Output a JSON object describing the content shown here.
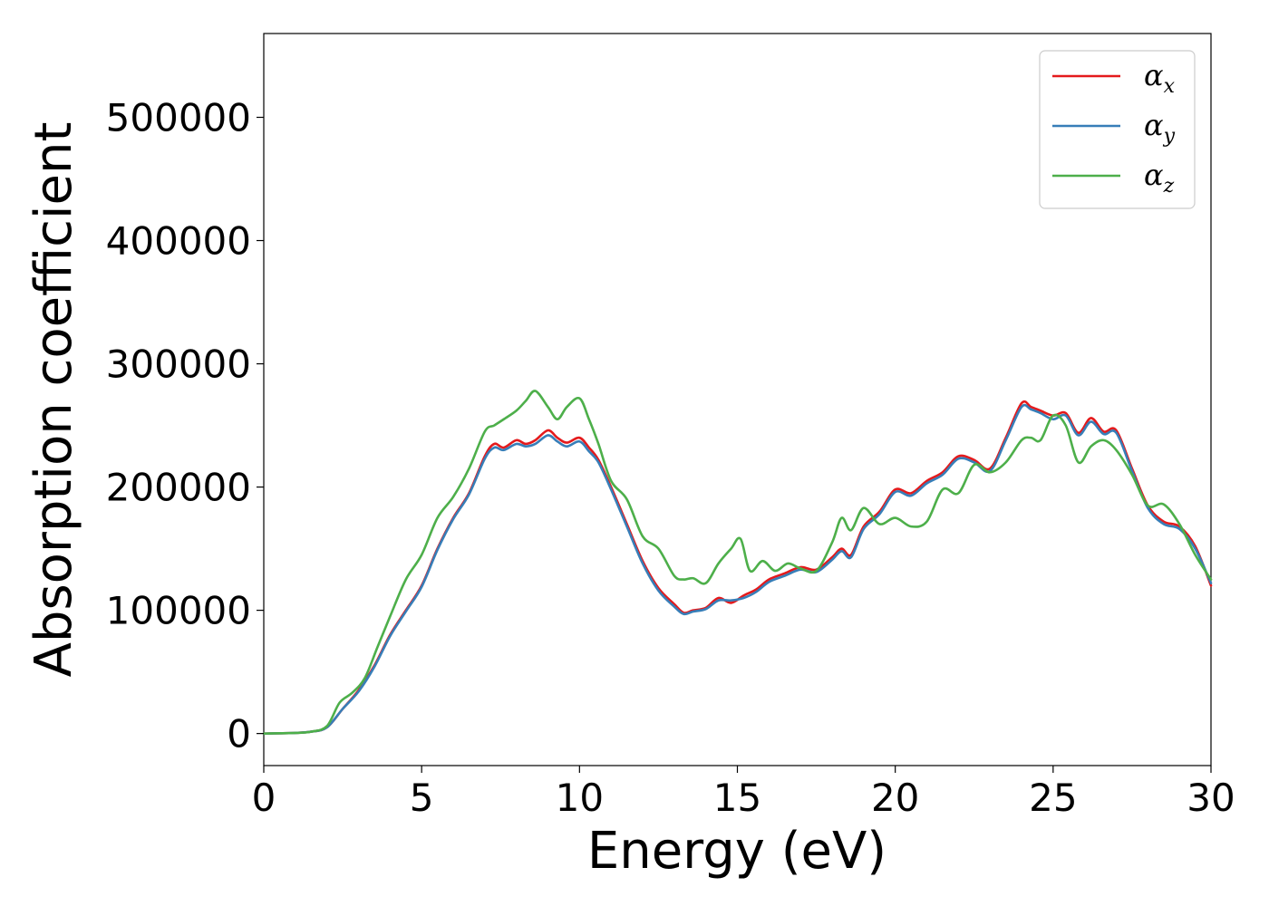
{
  "chart_data": {
    "type": "line",
    "xlabel": "Energy (eV)",
    "ylabel": "Absorption coefficient",
    "xlim": [
      0,
      30
    ],
    "ylim": [
      -26000,
      568000
    ],
    "xticks": [
      0,
      5,
      10,
      15,
      20,
      25,
      30
    ],
    "xtick_labels": [
      "0",
      "5",
      "10",
      "15",
      "20",
      "25",
      "30"
    ],
    "yticks": [
      0,
      100000,
      200000,
      300000,
      400000,
      500000
    ],
    "ytick_labels": [
      "0",
      "100000",
      "200000",
      "300000",
      "400000",
      "500000"
    ],
    "grid": false,
    "legend_position": "top-right",
    "series": [
      {
        "name": "α_x",
        "label_main": "α",
        "label_sub": "x",
        "color": "#e41a1c",
        "x": [
          0,
          1,
          1.5,
          2,
          2.5,
          3,
          3.5,
          4,
          4.5,
          5,
          5.5,
          6,
          6.5,
          7,
          7.3,
          7.6,
          8,
          8.3,
          8.6,
          9,
          9.3,
          9.6,
          10,
          10.3,
          10.6,
          11,
          11.5,
          12,
          12.5,
          13,
          13.3,
          13.6,
          14,
          14.4,
          14.8,
          15.2,
          15.6,
          16,
          16.5,
          17,
          17.5,
          18,
          18.3,
          18.6,
          19,
          19.5,
          20,
          20.5,
          21,
          21.5,
          22,
          22.5,
          23,
          23.5,
          24,
          24.3,
          24.6,
          25,
          25.4,
          25.8,
          26.2,
          26.6,
          27,
          27.5,
          28,
          28.5,
          29,
          29.5,
          30
        ],
        "y": [
          0,
          500,
          1500,
          5000,
          20000,
          35000,
          55000,
          80000,
          100000,
          120000,
          150000,
          175000,
          195000,
          225000,
          235000,
          232000,
          238000,
          235000,
          238000,
          246000,
          240000,
          236000,
          240000,
          232000,
          222000,
          200000,
          170000,
          140000,
          118000,
          105000,
          98000,
          100000,
          102000,
          110000,
          106000,
          112000,
          117000,
          125000,
          130000,
          135000,
          133000,
          143000,
          150000,
          145000,
          168000,
          180000,
          198000,
          195000,
          205000,
          212000,
          225000,
          222000,
          215000,
          240000,
          268000,
          265000,
          262000,
          258000,
          260000,
          244000,
          256000,
          245000,
          246000,
          215000,
          185000,
          172000,
          168000,
          152000,
          120000
        ]
      },
      {
        "name": "α_y",
        "label_main": "α",
        "label_sub": "y",
        "color": "#377eb8",
        "x": [
          0,
          1,
          1.5,
          2,
          2.5,
          3,
          3.5,
          4,
          4.5,
          5,
          5.5,
          6,
          6.5,
          7,
          7.3,
          7.6,
          8,
          8.3,
          8.6,
          9,
          9.3,
          9.6,
          10,
          10.3,
          10.6,
          11,
          11.5,
          12,
          12.5,
          13,
          13.3,
          13.6,
          14,
          14.4,
          14.8,
          15.2,
          15.6,
          16,
          16.5,
          17,
          17.5,
          18,
          18.3,
          18.6,
          19,
          19.5,
          20,
          20.5,
          21,
          21.5,
          22,
          22.5,
          23,
          23.5,
          24,
          24.3,
          24.6,
          25,
          25.4,
          25.8,
          26.2,
          26.6,
          27,
          27.5,
          28,
          28.5,
          29,
          29.5,
          30
        ],
        "y": [
          0,
          500,
          1500,
          5000,
          20000,
          34000,
          54000,
          79000,
          99000,
          119000,
          149000,
          174000,
          194000,
          223000,
          232000,
          230000,
          235000,
          233000,
          235000,
          242000,
          237000,
          233000,
          237000,
          229000,
          220000,
          198000,
          168000,
          138000,
          116000,
          103000,
          97000,
          99000,
          101000,
          108000,
          108000,
          110000,
          115000,
          123000,
          128000,
          133000,
          131000,
          141000,
          148000,
          143000,
          166000,
          178000,
          196000,
          193000,
          203000,
          210000,
          223000,
          220000,
          213000,
          238000,
          265000,
          263000,
          260000,
          255000,
          258000,
          242000,
          253000,
          243000,
          244000,
          213000,
          183000,
          170000,
          166000,
          150000,
          122000
        ]
      },
      {
        "name": "α_z",
        "label_main": "α",
        "label_sub": "z",
        "color": "#4daf4a",
        "x": [
          0,
          1,
          1.5,
          2,
          2.4,
          2.8,
          3.2,
          3.6,
          4,
          4.5,
          5,
          5.5,
          6,
          6.5,
          7,
          7.3,
          7.6,
          8,
          8.3,
          8.6,
          9,
          9.3,
          9.6,
          10,
          10.3,
          10.6,
          11,
          11.5,
          12,
          12.5,
          13,
          13.3,
          13.6,
          14,
          14.4,
          14.8,
          15.1,
          15.4,
          15.8,
          16.2,
          16.6,
          17,
          17.5,
          18,
          18.3,
          18.6,
          19,
          19.5,
          20,
          20.5,
          21,
          21.5,
          22,
          22.5,
          23,
          23.5,
          24,
          24.3,
          24.6,
          25,
          25.4,
          25.8,
          26.2,
          26.6,
          27,
          27.5,
          28,
          28.5,
          29,
          29.5,
          30
        ],
        "y": [
          0,
          500,
          1500,
          6000,
          25000,
          33000,
          45000,
          70000,
          95000,
          125000,
          145000,
          175000,
          192000,
          215000,
          245000,
          250000,
          255000,
          262000,
          270000,
          278000,
          265000,
          255000,
          265000,
          272000,
          255000,
          235000,
          205000,
          190000,
          160000,
          150000,
          128000,
          125000,
          126000,
          122000,
          138000,
          150000,
          158000,
          132000,
          140000,
          132000,
          138000,
          134000,
          132000,
          155000,
          175000,
          165000,
          183000,
          170000,
          175000,
          168000,
          172000,
          198000,
          195000,
          218000,
          212000,
          220000,
          238000,
          240000,
          238000,
          258000,
          250000,
          220000,
          233000,
          238000,
          230000,
          210000,
          185000,
          186000,
          170000,
          145000,
          125000
        ]
      }
    ]
  }
}
